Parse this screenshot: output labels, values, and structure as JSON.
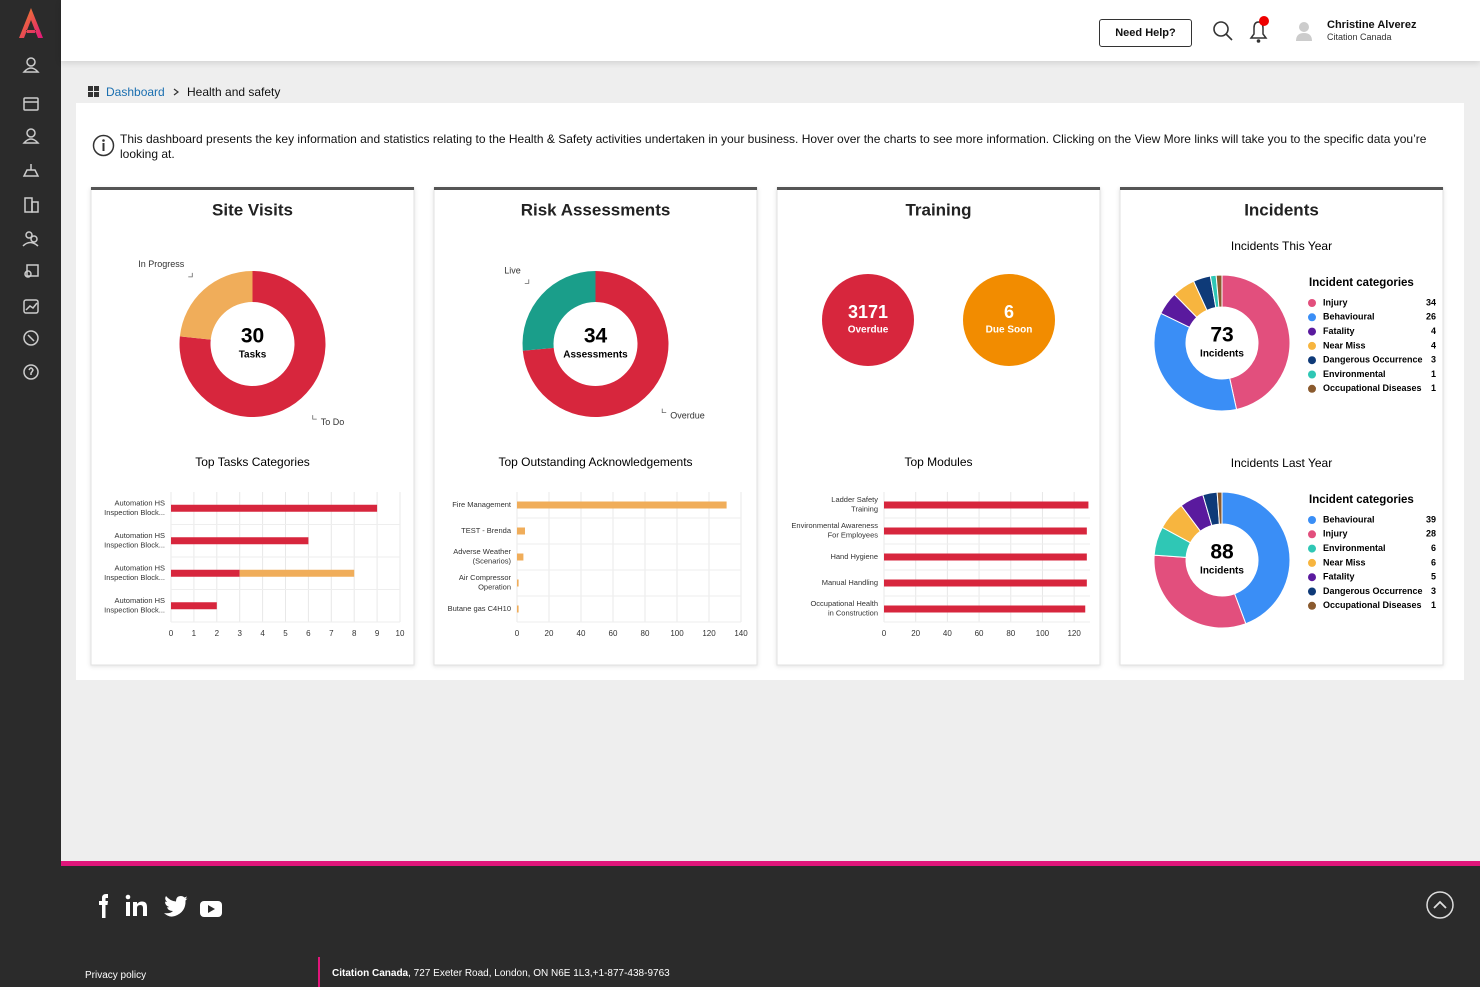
{
  "header": {
    "help": "Need Help?",
    "user_name": "Christine Alverez",
    "user_org": "Citation Canada"
  },
  "breadcrumb": {
    "root": "Dashboard",
    "current": "Health and safety"
  },
  "intro": "This dashboard presents the key information and statistics relating to the Health & Safety activities undertaken in your business. Hover over the charts to see more information. Clicking on the View More links will take you to the specific data you’re looking at.",
  "cards": [
    {
      "title": "Site Visits",
      "donut": {
        "total": 30,
        "unit": "Tasks",
        "segments": [
          {
            "name": "To Do",
            "value": 23,
            "color": "#d7263d"
          },
          {
            "name": "In Progress",
            "value": 7,
            "color": "#f0ad5a"
          }
        ]
      },
      "bars": {
        "title": "Top Tasks Categories",
        "categories": [
          [
            "Automation HS",
            "Inspection Block..."
          ],
          [
            "Automation HS",
            "Inspection Block..."
          ],
          [
            "Automation HS",
            "Inspection Block..."
          ],
          [
            "Automation HS",
            "Inspection Block..."
          ]
        ],
        "series": [
          {
            "color": "#d7263d",
            "values": [
              9,
              6,
              3,
              2
            ]
          },
          {
            "color": "#f0ad5a",
            "values": [
              0,
              0,
              5,
              0
            ]
          }
        ],
        "xlim": [
          0,
          10
        ],
        "xticks": [
          0,
          1,
          2,
          3,
          4,
          5,
          6,
          7,
          8,
          9,
          10
        ]
      }
    },
    {
      "title": "Risk Assessments",
      "donut": {
        "total": 34,
        "unit": "Assessments",
        "segments": [
          {
            "name": "Overdue",
            "value": 25,
            "color": "#d7263d"
          },
          {
            "name": "Live",
            "value": 9,
            "color": "#1a9e8a"
          }
        ]
      },
      "bars": {
        "title": "Top Outstanding Acknowledgements",
        "categories": [
          [
            "Fire Management"
          ],
          [
            "TEST - Brenda"
          ],
          [
            "Adverse Weather",
            "(Scenarios)"
          ],
          [
            "Air Compressor",
            "Operation"
          ],
          [
            "Butane gas C4H10"
          ]
        ],
        "series": [
          {
            "color": "#f0ad5a",
            "values": [
              131,
              5,
              4,
              1,
              1
            ]
          }
        ],
        "xlim": [
          0,
          140
        ],
        "xticks": [
          0,
          20,
          40,
          60,
          80,
          100,
          120,
          140
        ]
      }
    },
    {
      "title": "Training",
      "badges": [
        {
          "value": 3171,
          "label": "Overdue",
          "color": "#d7263d"
        },
        {
          "value": 6,
          "label": "Due Soon",
          "color": "#f28c00"
        }
      ],
      "bars": {
        "title": "Top Modules",
        "categories": [
          [
            "Ladder Safety",
            "Training"
          ],
          [
            "Environmental Awareness",
            "For Employees"
          ],
          [
            "Hand Hygiene"
          ],
          [
            "Manual Handling"
          ],
          [
            "Occupational Health",
            "in Construction"
          ]
        ],
        "series": [
          {
            "color": "#d7263d",
            "values": [
              129,
              128,
              128,
              128,
              127
            ]
          }
        ],
        "xlim": [
          0,
          130
        ],
        "xticks": [
          0,
          20,
          40,
          60,
          80,
          100,
          120
        ]
      }
    },
    {
      "title": "Incidents",
      "pies": [
        {
          "title": "Incidents This Year",
          "total": 73,
          "unit": "Incidents",
          "legend_title": "Incident categories",
          "segments": [
            {
              "name": "Injury",
              "value": 34,
              "color": "#e24f7d"
            },
            {
              "name": "Behavioural",
              "value": 26,
              "color": "#3a8ef6"
            },
            {
              "name": "Fatality",
              "value": 4,
              "color": "#5a1a9e"
            },
            {
              "name": "Near Miss",
              "value": 4,
              "color": "#f7b53f"
            },
            {
              "name": "Dangerous Occurrence",
              "value": 3,
              "color": "#0e3a78"
            },
            {
              "name": "Environmental",
              "value": 1,
              "color": "#2fc7b5"
            },
            {
              "name": "Occupational Diseases",
              "value": 1,
              "color": "#8a5a2e"
            }
          ]
        },
        {
          "title": "Incidents Last Year",
          "total": 88,
          "unit": "Incidents",
          "legend_title": "Incident categories",
          "segments": [
            {
              "name": "Behavioural",
              "value": 39,
              "color": "#3a8ef6"
            },
            {
              "name": "Injury",
              "value": 28,
              "color": "#e24f7d"
            },
            {
              "name": "Environmental",
              "value": 6,
              "color": "#2fc7b5"
            },
            {
              "name": "Near Miss",
              "value": 6,
              "color": "#f7b53f"
            },
            {
              "name": "Fatality",
              "value": 5,
              "color": "#5a1a9e"
            },
            {
              "name": "Dangerous Occurrence",
              "value": 3,
              "color": "#0e3a78"
            },
            {
              "name": "Occupational Diseases",
              "value": 1,
              "color": "#8a5a2e"
            }
          ]
        }
      ]
    }
  ],
  "footer": {
    "privacy": "Privacy policy",
    "company": "Citation Canada",
    "address": ", 727 Exeter Road, London, ON N6E 1L3,+1-877-438-9763"
  }
}
